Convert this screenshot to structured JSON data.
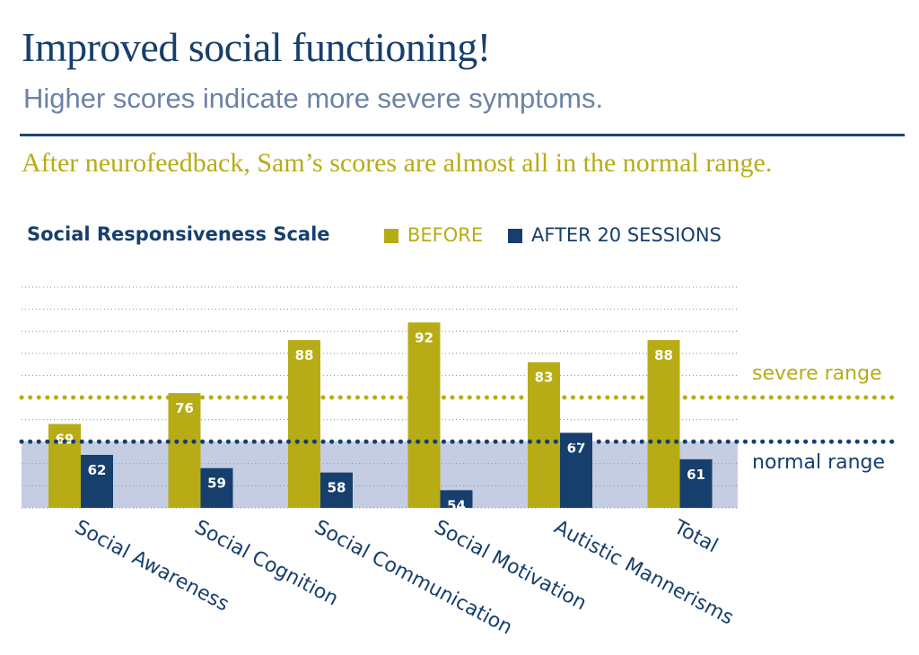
{
  "header": {
    "title": "Improved social functioning!",
    "subtitle": "Higher scores indicate more severe symptoms.",
    "note": "After neurofeedback, Sam’s scores are almost all in the normal range."
  },
  "legend": {
    "chart_title": "Social Responsiveness Scale",
    "before": "BEFORE",
    "after": "AFTER 20 SESSIONS"
  },
  "ranges": {
    "severe_label": "severe range",
    "normal_label": "normal range"
  },
  "colors": {
    "before": "#b7ac16",
    "after": "#163f6d",
    "normal_band": "#c5cde2",
    "title": "#163f6d",
    "subtitle": "#6b82a6"
  },
  "chart_data": {
    "type": "bar",
    "title": "Social Responsiveness Scale",
    "categories": [
      "Social Awareness",
      "Social Cognition",
      "Social Communication",
      "Social Motivation",
      "Autistic Mannerisms",
      "Total"
    ],
    "series": [
      {
        "name": "BEFORE",
        "values": [
          69,
          76,
          88,
          92,
          83,
          88
        ]
      },
      {
        "name": "AFTER 20 SESSIONS",
        "values": [
          62,
          59,
          58,
          54,
          67,
          61
        ]
      }
    ],
    "ylim": [
      50,
      100
    ],
    "gridlines": [
      50,
      55,
      60,
      65,
      70,
      75,
      80,
      85,
      90,
      95,
      100
    ],
    "thresholds": {
      "severe": 75,
      "normal": 65
    },
    "normal_band": [
      50,
      65
    ],
    "grid": true,
    "legend_position": "top"
  }
}
